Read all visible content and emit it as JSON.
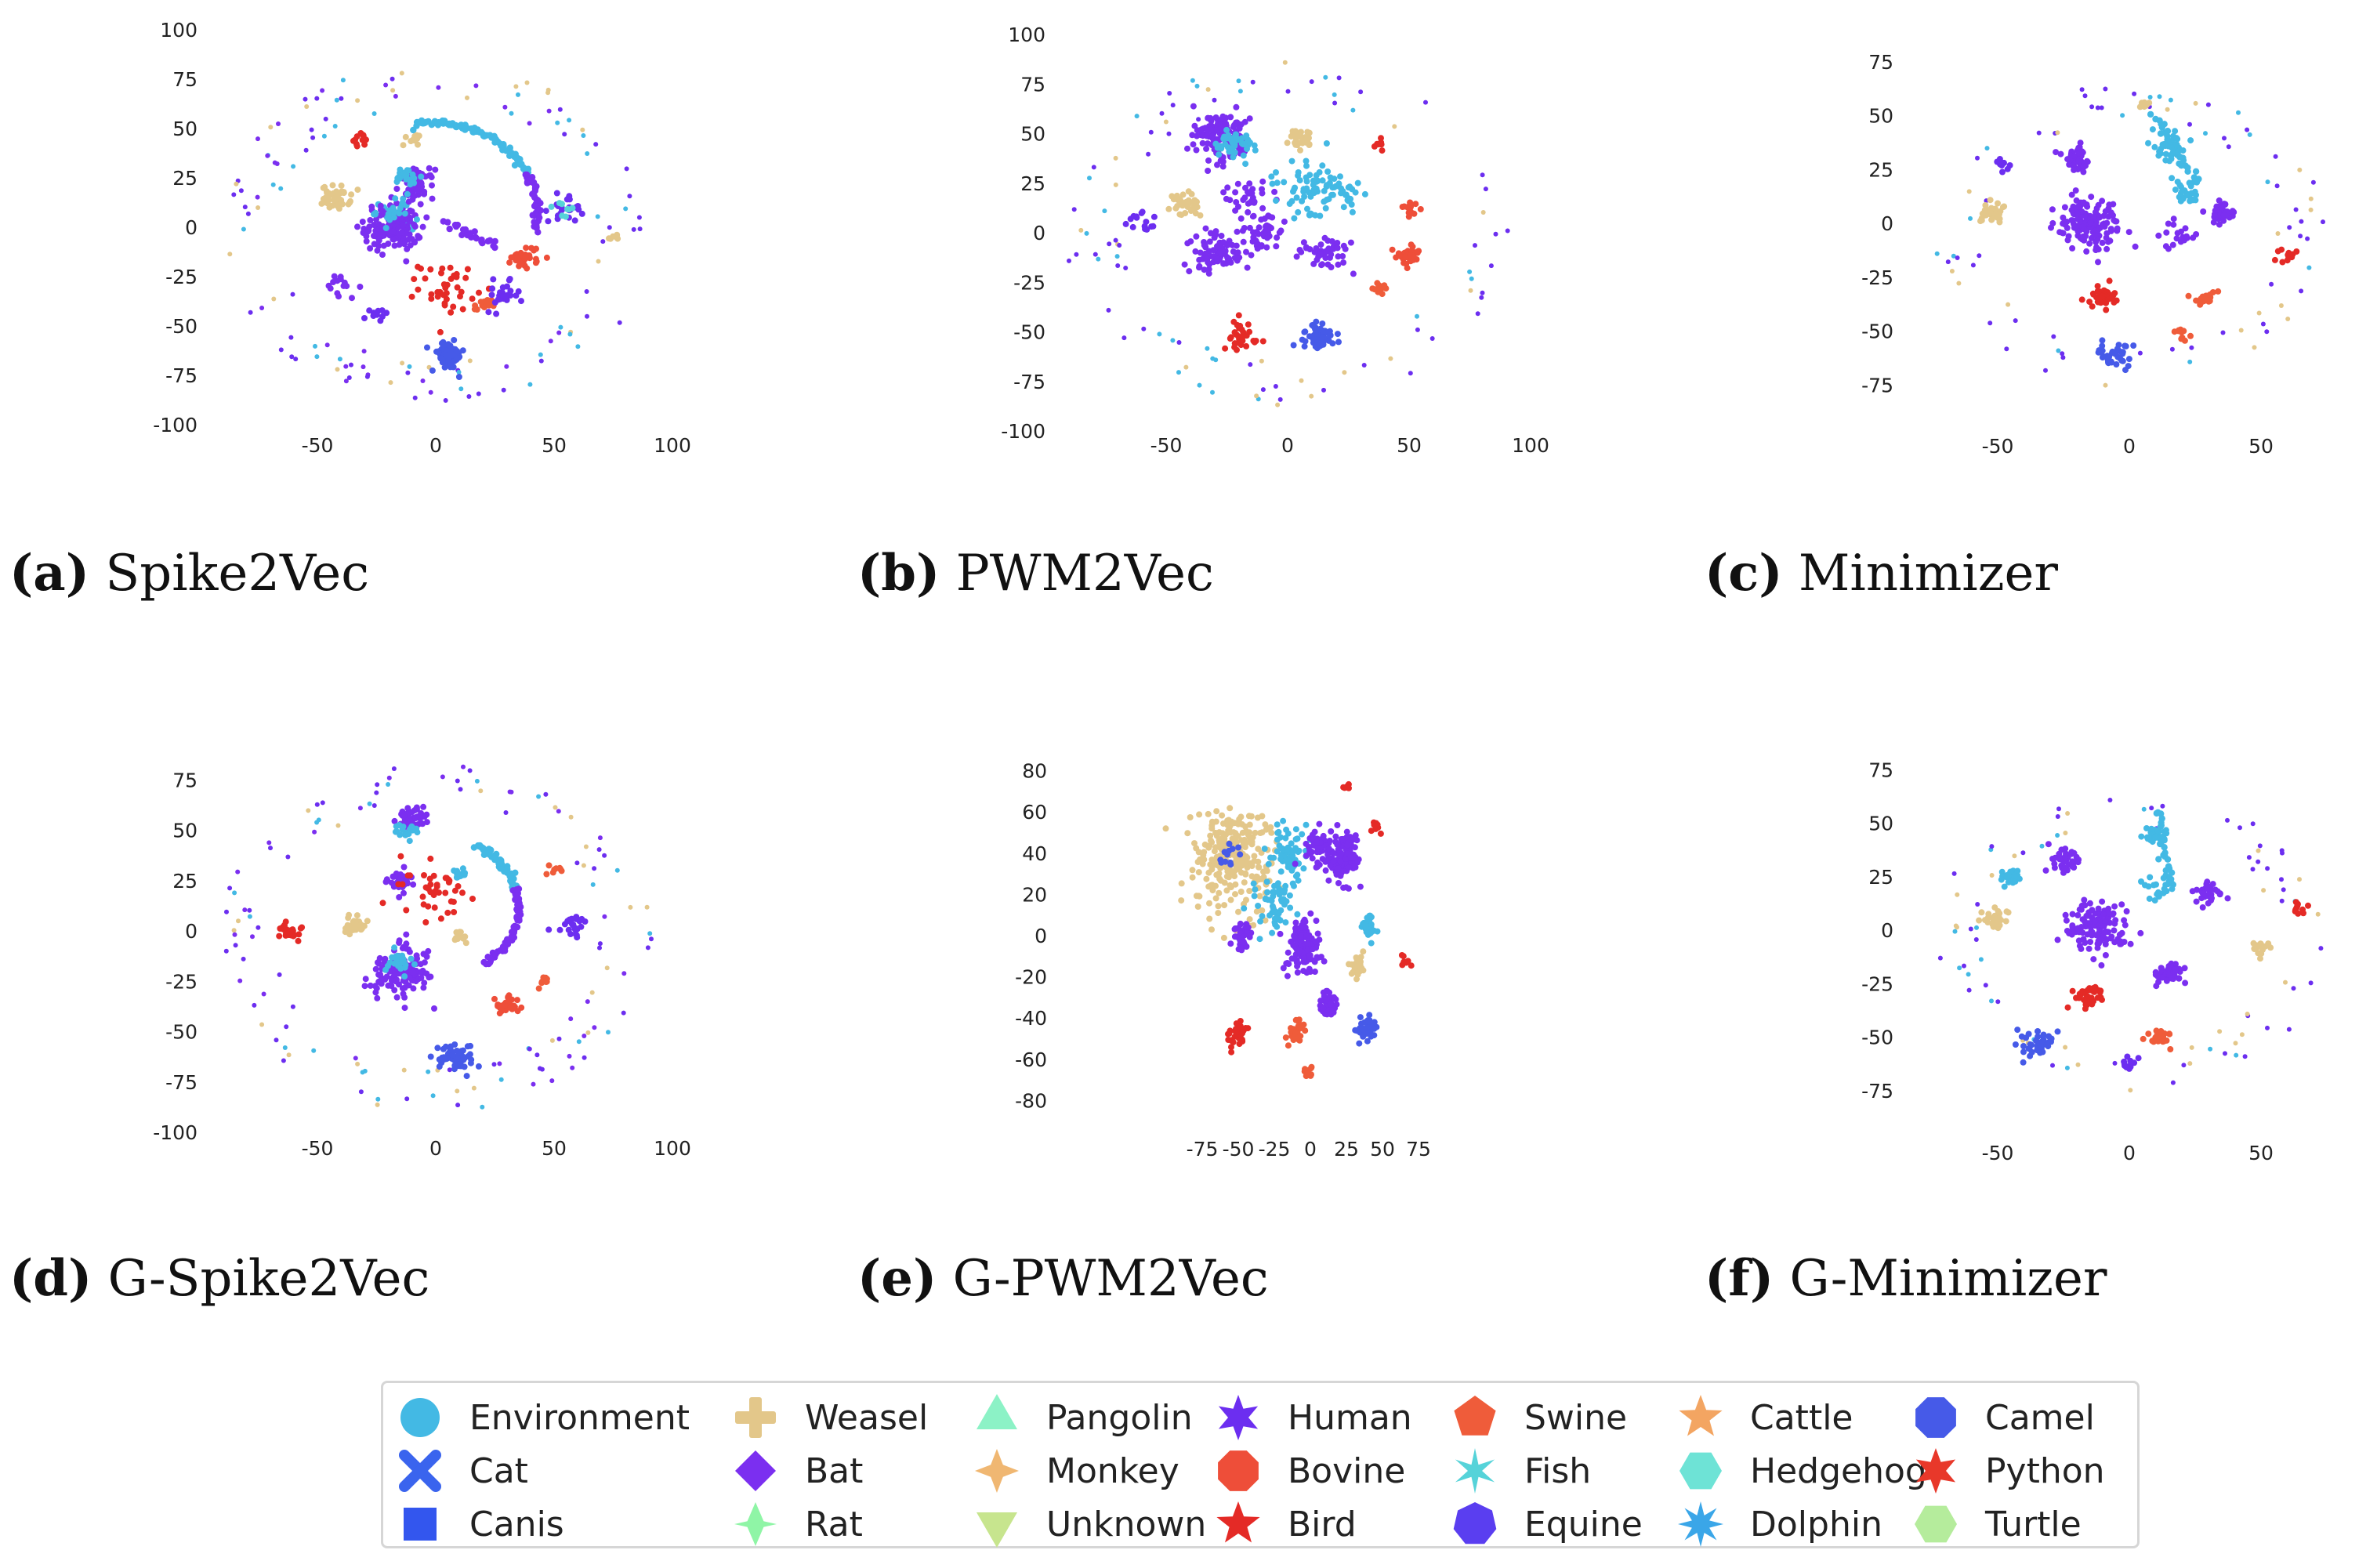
{
  "colors": {
    "Environment": "#43b9e4",
    "Cat": "#3a64ee",
    "Canis": "#3356ee",
    "Weasel": "#e3c78a",
    "Bat": "#7b2ff0",
    "Rat": "#8ff5a6",
    "Pangolin": "#8cf2c6",
    "Monkey": "#f0b772",
    "Unknown": "#c7e58e",
    "Human": "#6c2ef0",
    "Bovine": "#ee4e39",
    "Bird": "#e42a26",
    "Swine": "#ef5c3a",
    "Fish": "#56d3d9",
    "Equine": "#5a3ef0",
    "Cattle": "#f3a562",
    "Hedgehog": "#6ee3d6",
    "Dolphin": "#3aa6e8",
    "Camel": "#465ae8",
    "Python": "#e8382a",
    "Turtle": "#b5ec9c"
  },
  "legend": {
    "entries": [
      {
        "label": "Environment",
        "shape": "circle"
      },
      {
        "label": "Cat",
        "shape": "x"
      },
      {
        "label": "Canis",
        "shape": "square"
      },
      {
        "label": "Weasel",
        "shape": "plus"
      },
      {
        "label": "Bat",
        "shape": "diamond"
      },
      {
        "label": "Rat",
        "shape": "thin-diamond"
      },
      {
        "label": "Pangolin",
        "shape": "triangle-up"
      },
      {
        "label": "Monkey",
        "shape": "tri-star"
      },
      {
        "label": "Unknown",
        "shape": "triangle-down"
      },
      {
        "label": "Human",
        "shape": "star6"
      },
      {
        "label": "Bovine",
        "shape": "octagon"
      },
      {
        "label": "Bird",
        "shape": "star5"
      },
      {
        "label": "Swine",
        "shape": "pentagon"
      },
      {
        "label": "Fish",
        "shape": "asterisk"
      },
      {
        "label": "Equine",
        "shape": "heptagon"
      },
      {
        "label": "Cattle",
        "shape": "star5"
      },
      {
        "label": "Hedgehog",
        "shape": "hexagon"
      },
      {
        "label": "Dolphin",
        "shape": "star8"
      },
      {
        "label": "Camel",
        "shape": "octagon"
      },
      {
        "label": "Python",
        "shape": "star6"
      },
      {
        "label": "Turtle",
        "shape": "hexagon"
      }
    ]
  },
  "chart_data": [
    {
      "type": "scatter",
      "panel": "a",
      "caption_label": "(a)",
      "caption_title": "Spike2Vec",
      "xlim": [
        -90,
        100
      ],
      "ylim": [
        -100,
        100
      ],
      "xticks": [
        -50,
        0,
        50,
        100
      ],
      "yticks": [
        -100,
        -75,
        -50,
        -25,
        0,
        25,
        50,
        75,
        100
      ],
      "grid": false,
      "clusters": [
        {
          "class": "Bat",
          "cx": -18,
          "cy": 0,
          "r": 10,
          "n": 150
        },
        {
          "class": "Environment",
          "cx": -18,
          "cy": 8,
          "r": 6,
          "n": 25
        },
        {
          "class": "Bat",
          "cx": -8,
          "cy": 22,
          "r": 6,
          "n": 60
        },
        {
          "class": "Environment",
          "cx": -12,
          "cy": 25,
          "r": 5,
          "n": 25
        },
        {
          "class": "Weasel",
          "cx": -42,
          "cy": 15,
          "r": 5,
          "n": 45
        },
        {
          "class": "Weasel",
          "cx": -10,
          "cy": 45,
          "r": 3,
          "n": 12
        },
        {
          "class": "Bird",
          "cx": -32,
          "cy": 44,
          "r": 3,
          "n": 12
        },
        {
          "class": "Bovine",
          "cx": 38,
          "cy": -15,
          "r": 5,
          "n": 35
        },
        {
          "class": "Bird",
          "cx": 5,
          "cy": -30,
          "r": 10,
          "n": 40
        },
        {
          "class": "Swine",
          "cx": 20,
          "cy": -40,
          "r": 3,
          "n": 15
        },
        {
          "class": "Camel",
          "cx": 5,
          "cy": -65,
          "r": 6,
          "n": 70
        },
        {
          "class": "Human",
          "cx": 55,
          "cy": 10,
          "r": 6,
          "n": 25
        },
        {
          "class": "Human",
          "cx": 28,
          "cy": -35,
          "r": 6,
          "n": 25
        },
        {
          "class": "Bat",
          "cx": -40,
          "cy": -30,
          "r": 6,
          "n": 15
        },
        {
          "class": "Human",
          "cx": -25,
          "cy": -45,
          "r": 4,
          "n": 10
        },
        {
          "class": "Fish",
          "cx": 55,
          "cy": 8,
          "r": 4,
          "n": 8
        },
        {
          "class": "Weasel",
          "cx": 75,
          "cy": -5,
          "r": 3,
          "n": 6
        }
      ],
      "arcs": [
        {
          "class": "Environment",
          "type": "arc",
          "cx": -2,
          "cy": 8,
          "r": 45,
          "a0": 25,
          "a1": 98,
          "n": 90
        },
        {
          "class": "Bat",
          "type": "arc",
          "cx": -2,
          "cy": 8,
          "r": 45,
          "a0": -12,
          "a1": 25,
          "n": 40
        },
        {
          "class": "Bat",
          "type": "line",
          "x0": 25,
          "y0": -10,
          "x1": 5,
          "y1": 2,
          "n": 25
        },
        {
          "class": "Environment",
          "type": "line",
          "x0": -25,
          "y0": 12,
          "x1": -10,
          "y1": 0,
          "n": 12
        }
      ],
      "ring": {
        "cx": 0,
        "cy": -3,
        "r": 88,
        "n": 120,
        "classes": [
          "Human",
          "Human",
          "Environment",
          "Weasel",
          "Bat"
        ]
      }
    },
    {
      "type": "scatter",
      "panel": "b",
      "caption_label": "(b)",
      "caption_title": "PWM2Vec",
      "xlim": [
        -90,
        100
      ],
      "ylim": [
        -100,
        100
      ],
      "xticks": [
        -50,
        0,
        50,
        100
      ],
      "yticks": [
        -100,
        -75,
        -50,
        -25,
        0,
        25,
        50,
        75,
        100
      ],
      "grid": false,
      "clusters": [
        {
          "class": "Bat",
          "cx": -28,
          "cy": 50,
          "r": 10,
          "n": 130
        },
        {
          "class": "Environment",
          "cx": -22,
          "cy": 45,
          "r": 7,
          "n": 45
        },
        {
          "class": "Weasel",
          "cx": 5,
          "cy": 48,
          "r": 4,
          "n": 35
        },
        {
          "class": "Weasel",
          "cx": -42,
          "cy": 15,
          "r": 6,
          "n": 40
        },
        {
          "class": "Bat",
          "cx": -15,
          "cy": 18,
          "r": 8,
          "n": 35
        },
        {
          "class": "Environment",
          "cx": 10,
          "cy": 22,
          "r": 12,
          "n": 70
        },
        {
          "class": "Environment",
          "cx": 25,
          "cy": 20,
          "r": 5,
          "n": 20
        },
        {
          "class": "Bat",
          "cx": -28,
          "cy": -10,
          "r": 9,
          "n": 90
        },
        {
          "class": "Bat",
          "cx": 15,
          "cy": -10,
          "r": 8,
          "n": 45
        },
        {
          "class": "Bat",
          "cx": -10,
          "cy": 0,
          "r": 8,
          "n": 40
        },
        {
          "class": "Bovine",
          "cx": 50,
          "cy": -12,
          "r": 4,
          "n": 35
        },
        {
          "class": "Bovine",
          "cx": 50,
          "cy": 12,
          "r": 3,
          "n": 12
        },
        {
          "class": "Bird",
          "cx": 38,
          "cy": 45,
          "r": 2,
          "n": 8
        },
        {
          "class": "Bird",
          "cx": -18,
          "cy": -52,
          "r": 6,
          "n": 30
        },
        {
          "class": "Camel",
          "cx": 12,
          "cy": -52,
          "r": 6,
          "n": 55
        },
        {
          "class": "Swine",
          "cx": 38,
          "cy": -28,
          "r": 3,
          "n": 12
        },
        {
          "class": "Human",
          "cx": -60,
          "cy": 5,
          "r": 5,
          "n": 15
        }
      ],
      "arcs": [],
      "ring": {
        "cx": 0,
        "cy": 0,
        "r": 88,
        "n": 90,
        "classes": [
          "Human",
          "Environment",
          "Human",
          "Weasel"
        ]
      }
    },
    {
      "type": "scatter",
      "panel": "c",
      "caption_label": "(c)",
      "caption_title": "Minimizer",
      "xlim": [
        -75,
        75
      ],
      "ylim": [
        -90,
        85
      ],
      "xticks": [
        -50,
        0,
        50
      ],
      "yticks": [
        -75,
        -50,
        -25,
        0,
        25,
        50,
        75
      ],
      "grid": false,
      "clusters": [
        {
          "class": "Bat",
          "cx": -15,
          "cy": 0,
          "r": 10,
          "n": 140
        },
        {
          "class": "Bat",
          "cx": -20,
          "cy": 30,
          "r": 5,
          "n": 45
        },
        {
          "class": "Environment",
          "cx": 15,
          "cy": 35,
          "r": 5,
          "n": 40
        },
        {
          "class": "Environment",
          "cx": 22,
          "cy": 15,
          "r": 5,
          "n": 25
        },
        {
          "class": "Bat",
          "cx": 35,
          "cy": 5,
          "r": 4,
          "n": 35
        },
        {
          "class": "Bat",
          "cx": 20,
          "cy": -5,
          "r": 6,
          "n": 20
        },
        {
          "class": "Weasel",
          "cx": -52,
          "cy": 5,
          "r": 4,
          "n": 35
        },
        {
          "class": "Weasel",
          "cx": 6,
          "cy": 55,
          "r": 2,
          "n": 8
        },
        {
          "class": "Bird",
          "cx": -10,
          "cy": -35,
          "r": 5,
          "n": 40
        },
        {
          "class": "Swine",
          "cx": 28,
          "cy": -35,
          "r": 4,
          "n": 25
        },
        {
          "class": "Swine",
          "cx": 20,
          "cy": -52,
          "r": 3,
          "n": 10
        },
        {
          "class": "Camel",
          "cx": -5,
          "cy": -60,
          "r": 5,
          "n": 35
        },
        {
          "class": "Bird",
          "cx": 60,
          "cy": -15,
          "r": 3,
          "n": 12
        },
        {
          "class": "Human",
          "cx": -48,
          "cy": 28,
          "r": 3,
          "n": 10
        }
      ],
      "arcs": [
        {
          "class": "Environment",
          "type": "line",
          "x0": 10,
          "y0": 50,
          "x1": 25,
          "y1": 20,
          "n": 30
        }
      ],
      "ring": {
        "cx": 0,
        "cy": -5,
        "r": 72,
        "n": 80,
        "classes": [
          "Human",
          "Human",
          "Environment",
          "Weasel"
        ]
      }
    },
    {
      "type": "scatter",
      "panel": "d",
      "caption_label": "(d)",
      "caption_title": "G-Spike2Vec",
      "xlim": [
        -90,
        100
      ],
      "ylim": [
        -100,
        90
      ],
      "xticks": [
        -50,
        0,
        50,
        100
      ],
      "yticks": [
        -100,
        -75,
        -50,
        -25,
        0,
        25,
        50,
        75
      ],
      "grid": false,
      "clusters": [
        {
          "class": "Bat",
          "cx": -15,
          "cy": -20,
          "r": 10,
          "n": 140
        },
        {
          "class": "Environment",
          "cx": -15,
          "cy": -15,
          "r": 5,
          "n": 25
        },
        {
          "class": "Bat",
          "cx": -10,
          "cy": 55,
          "r": 5,
          "n": 50
        },
        {
          "class": "Environment",
          "cx": -12,
          "cy": 50,
          "r": 4,
          "n": 18
        },
        {
          "class": "Bat",
          "cx": -15,
          "cy": 25,
          "r": 5,
          "n": 35
        },
        {
          "class": "Environment",
          "cx": 10,
          "cy": 28,
          "r": 3,
          "n": 15
        },
        {
          "class": "Weasel",
          "cx": -35,
          "cy": 2,
          "r": 4,
          "n": 35
        },
        {
          "class": "Weasel",
          "cx": 10,
          "cy": -2,
          "r": 3,
          "n": 15
        },
        {
          "class": "Bird",
          "cx": -62,
          "cy": 0,
          "r": 4,
          "n": 30
        },
        {
          "class": "Bovine",
          "cx": 30,
          "cy": -37,
          "r": 4,
          "n": 30
        },
        {
          "class": "Bird",
          "cx": 0,
          "cy": 20,
          "r": 12,
          "n": 40
        },
        {
          "class": "Swine",
          "cx": 50,
          "cy": 30,
          "r": 2,
          "n": 8
        },
        {
          "class": "Camel",
          "cx": 8,
          "cy": -63,
          "r": 6,
          "n": 60
        },
        {
          "class": "Human",
          "cx": 58,
          "cy": 2,
          "r": 5,
          "n": 25
        },
        {
          "class": "Swine",
          "cx": 45,
          "cy": -25,
          "r": 2,
          "n": 8
        }
      ],
      "arcs": [
        {
          "class": "Environment",
          "type": "arc",
          "cx": 0,
          "cy": 12,
          "r": 35,
          "a0": 15,
          "a1": 60,
          "n": 50
        },
        {
          "class": "Bat",
          "type": "arc",
          "cx": 0,
          "cy": 12,
          "r": 35,
          "a0": -55,
          "a1": 15,
          "n": 60
        }
      ],
      "ring": {
        "cx": 0,
        "cy": -3,
        "r": 88,
        "n": 120,
        "classes": [
          "Human",
          "Human",
          "Environment",
          "Weasel",
          "Bat"
        ]
      }
    },
    {
      "type": "scatter",
      "panel": "e",
      "caption_label": "(e)",
      "caption_title": "G-PWM2Vec",
      "xlim": [
        -85,
        85
      ],
      "ylim": [
        -82,
        82
      ],
      "xticks": [
        -75,
        -50,
        -25,
        0,
        25,
        50,
        75
      ],
      "yticks": [
        -80,
        -60,
        -40,
        -20,
        0,
        20,
        40,
        60,
        80
      ],
      "grid": false,
      "clusters": [
        {
          "class": "Weasel",
          "cx": -55,
          "cy": 38,
          "r": 22,
          "n": 260
        },
        {
          "class": "Camel",
          "cx": -55,
          "cy": 38,
          "r": 8,
          "n": 12
        },
        {
          "class": "Environment",
          "cx": -15,
          "cy": 40,
          "r": 10,
          "n": 70
        },
        {
          "class": "Environment",
          "cx": -25,
          "cy": 15,
          "r": 10,
          "n": 50
        },
        {
          "class": "Bat",
          "cx": 23,
          "cy": 38,
          "r": 10,
          "n": 120
        },
        {
          "class": "Bat",
          "cx": 5,
          "cy": 42,
          "r": 8,
          "n": 40
        },
        {
          "class": "Bat",
          "cx": -5,
          "cy": -5,
          "r": 10,
          "n": 120
        },
        {
          "class": "Bat",
          "cx": -47,
          "cy": 0,
          "r": 5,
          "n": 45
        },
        {
          "class": "Environment",
          "cx": 40,
          "cy": 5,
          "r": 4,
          "n": 30
        },
        {
          "class": "Weasel",
          "cx": 33,
          "cy": -15,
          "r": 4,
          "n": 30
        },
        {
          "class": "Bat",
          "cx": 12,
          "cy": -33,
          "r": 5,
          "n": 45
        },
        {
          "class": "Camel",
          "cx": 38,
          "cy": -45,
          "r": 6,
          "n": 35
        },
        {
          "class": "Bird",
          "cx": -50,
          "cy": -47,
          "r": 6,
          "n": 30
        },
        {
          "class": "Swine",
          "cx": -10,
          "cy": -47,
          "r": 5,
          "n": 30
        },
        {
          "class": "Swine",
          "cx": -2,
          "cy": -66,
          "r": 3,
          "n": 12
        },
        {
          "class": "Bird",
          "cx": 65,
          "cy": -12,
          "r": 3,
          "n": 8
        },
        {
          "class": "Bird",
          "cx": 45,
          "cy": 52,
          "r": 3,
          "n": 8
        },
        {
          "class": "Bird",
          "cx": 25,
          "cy": 72,
          "r": 2,
          "n": 6
        }
      ],
      "arcs": [],
      "ring": {
        "cx": 0,
        "cy": 0,
        "r": 0,
        "n": 0,
        "classes": [
          "Human"
        ]
      }
    },
    {
      "type": "scatter",
      "panel": "f",
      "caption_label": "(f)",
      "caption_title": "G-Minimizer",
      "xlim": [
        -75,
        75
      ],
      "ylim": [
        -90,
        85
      ],
      "xticks": [
        -50,
        0,
        50
      ],
      "yticks": [
        -75,
        -50,
        -25,
        0,
        25,
        50,
        75
      ],
      "grid": false,
      "clusters": [
        {
          "class": "Bat",
          "cx": -12,
          "cy": 2,
          "r": 10,
          "n": 130
        },
        {
          "class": "Bat",
          "cx": -25,
          "cy": 33,
          "r": 5,
          "n": 40
        },
        {
          "class": "Environment",
          "cx": -45,
          "cy": 25,
          "r": 3,
          "n": 30
        },
        {
          "class": "Environment",
          "cx": 10,
          "cy": 45,
          "r": 4,
          "n": 30
        },
        {
          "class": "Environment",
          "cx": 12,
          "cy": 20,
          "r": 5,
          "n": 25
        },
        {
          "class": "Bat",
          "cx": 30,
          "cy": 17,
          "r": 4,
          "n": 35
        },
        {
          "class": "Bat",
          "cx": 15,
          "cy": -20,
          "r": 4,
          "n": 45
        },
        {
          "class": "Weasel",
          "cx": -50,
          "cy": 5,
          "r": 4,
          "n": 35
        },
        {
          "class": "Weasel",
          "cx": 50,
          "cy": -8,
          "r": 3,
          "n": 15
        },
        {
          "class": "Bird",
          "cx": -15,
          "cy": -30,
          "r": 5,
          "n": 35
        },
        {
          "class": "Swine",
          "cx": 12,
          "cy": -50,
          "r": 4,
          "n": 25
        },
        {
          "class": "Camel",
          "cx": -35,
          "cy": -53,
          "r": 5,
          "n": 40
        },
        {
          "class": "Bird",
          "cx": 65,
          "cy": 10,
          "r": 3,
          "n": 10
        },
        {
          "class": "Human",
          "cx": 0,
          "cy": -62,
          "r": 3,
          "n": 12
        }
      ],
      "arcs": [
        {
          "class": "Environment",
          "type": "line",
          "x0": 10,
          "y0": 55,
          "x1": 15,
          "y1": 25,
          "n": 25
        }
      ],
      "ring": {
        "cx": 0,
        "cy": -5,
        "r": 72,
        "n": 80,
        "classes": [
          "Human",
          "Human",
          "Environment",
          "Weasel"
        ]
      }
    }
  ]
}
